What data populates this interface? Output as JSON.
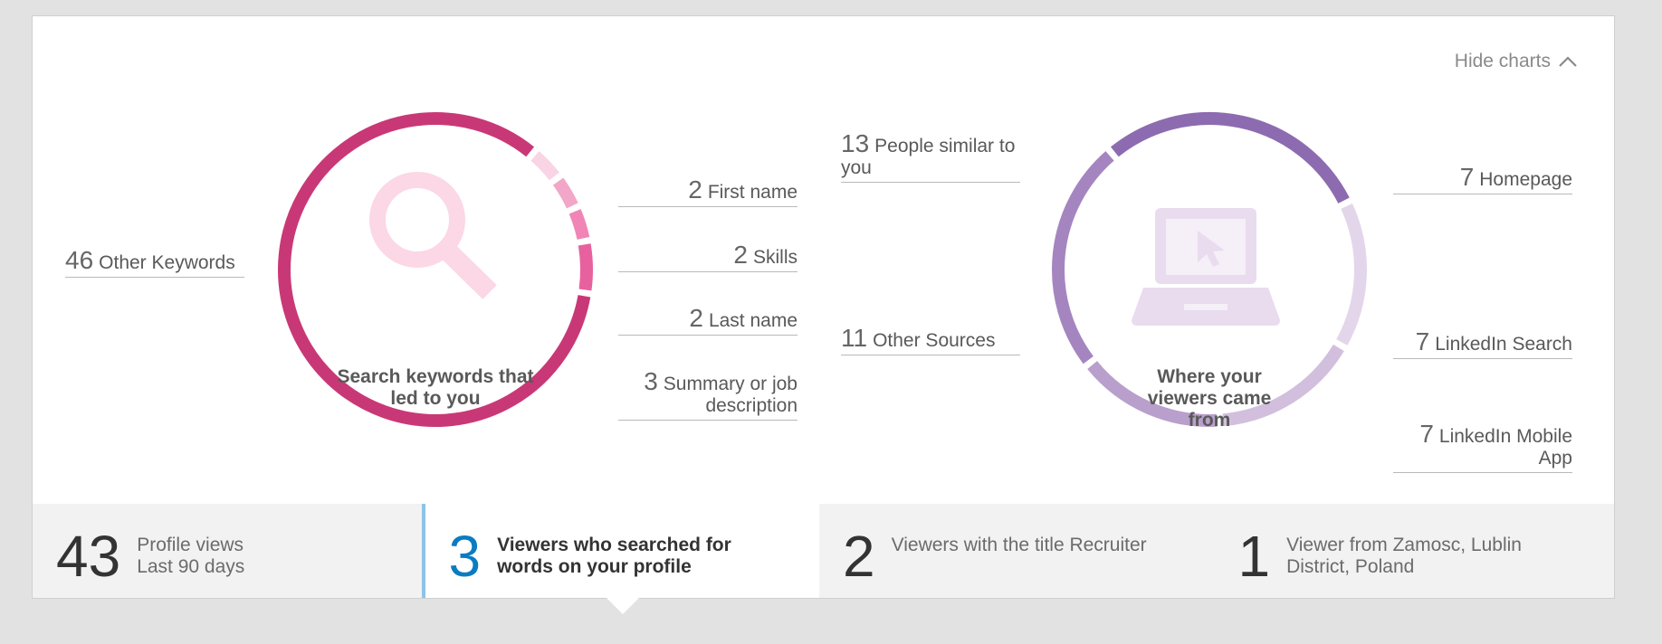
{
  "controls": {
    "hide_charts_label": "Hide charts"
  },
  "keywords_chart": {
    "center_label": "Search keywords that led to you",
    "icon": "magnifier-icon",
    "legend": [
      {
        "num": "46",
        "label": "Other Keywords"
      },
      {
        "num": "2",
        "label": "First name"
      },
      {
        "num": "2",
        "label": "Skills"
      },
      {
        "num": "2",
        "label": "Last name"
      },
      {
        "num": "3",
        "label": "Summary or job description"
      }
    ]
  },
  "sources_chart": {
    "center_label": "Where your viewers came from",
    "icon": "laptop-cursor-icon",
    "legend": [
      {
        "num": "13",
        "label": "People similar to you"
      },
      {
        "num": "11",
        "label": "Other Sources"
      },
      {
        "num": "7",
        "label": "Homepage"
      },
      {
        "num": "7",
        "label": "LinkedIn Search"
      },
      {
        "num": "7",
        "label": "LinkedIn Mobile App"
      }
    ]
  },
  "stats": [
    {
      "num": "43",
      "line1": "Profile views",
      "line2": "Last 90 days"
    },
    {
      "num": "3",
      "line1": "Viewers who searched for words on your profile",
      "line2": ""
    },
    {
      "num": "2",
      "line1": "Viewers with the title Recruiter",
      "line2": ""
    },
    {
      "num": "1",
      "line1": "Viewer from Zamosc, Lublin District, Poland",
      "line2": ""
    }
  ],
  "chart_data": [
    {
      "type": "pie",
      "title": "Search keywords that led to you",
      "categories": [
        "Other Keywords",
        "First name",
        "Skills",
        "Last name",
        "Summary or job description"
      ],
      "values": [
        46,
        2,
        2,
        2,
        3
      ],
      "colors": [
        "#c93876",
        "#f9d4e4",
        "#f2a6c8",
        "#f085b6",
        "#e8619f"
      ]
    },
    {
      "type": "pie",
      "title": "Where your viewers came from",
      "categories": [
        "People similar to you",
        "Homepage",
        "LinkedIn Search",
        "LinkedIn Mobile App",
        "Other Sources"
      ],
      "values": [
        13,
        7,
        7,
        7,
        11
      ],
      "colors": [
        "#8d6bb0",
        "#e3d6ea",
        "#d2bfdd",
        "#b99fcb",
        "#a585bf"
      ]
    }
  ],
  "colors": {
    "accent_blue": "#0a7cc1",
    "active_border": "#8ec3e8"
  }
}
